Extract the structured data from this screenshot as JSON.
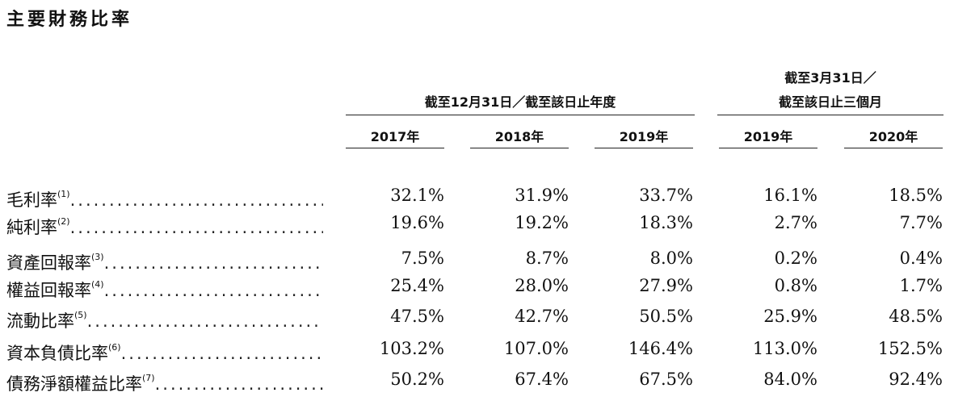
{
  "title": "主要財務比率",
  "header": {
    "group_annual": "截至12月31日／截至該日止年度",
    "group_interim_line1": "截至3月31日／",
    "group_interim_line2": "截至該日止三個月",
    "years": [
      "2017年",
      "2018年",
      "2019年",
      "2019年",
      "2020年"
    ]
  },
  "rows": [
    {
      "label": "毛利率",
      "note": "(1)",
      "values": [
        "32.1%",
        "31.9%",
        "33.7%",
        "16.1%",
        "18.5%"
      ]
    },
    {
      "label": "純利率",
      "note": "(2)",
      "values": [
        "19.6%",
        "19.2%",
        "18.3%",
        "2.7%",
        "7.7%"
      ]
    },
    {
      "label": "資產回報率",
      "note": "(3)",
      "values": [
        "7.5%",
        "8.7%",
        "8.0%",
        "0.2%",
        "0.4%"
      ]
    },
    {
      "label": "權益回報率",
      "note": "(4)",
      "values": [
        "25.4%",
        "28.0%",
        "27.9%",
        "0.8%",
        "1.7%"
      ]
    },
    {
      "label": "流動比率",
      "note": "(5)",
      "values": [
        "47.5%",
        "42.7%",
        "50.5%",
        "25.9%",
        "48.5%"
      ]
    },
    {
      "label": "資本負債比率",
      "note": "(6)",
      "values": [
        "103.2%",
        "107.0%",
        "146.4%",
        "113.0%",
        "152.5%"
      ]
    },
    {
      "label": "債務淨額權益比率",
      "note": "(7)",
      "values": [
        "50.2%",
        "67.4%",
        "67.5%",
        "84.0%",
        "92.4%"
      ]
    }
  ]
}
